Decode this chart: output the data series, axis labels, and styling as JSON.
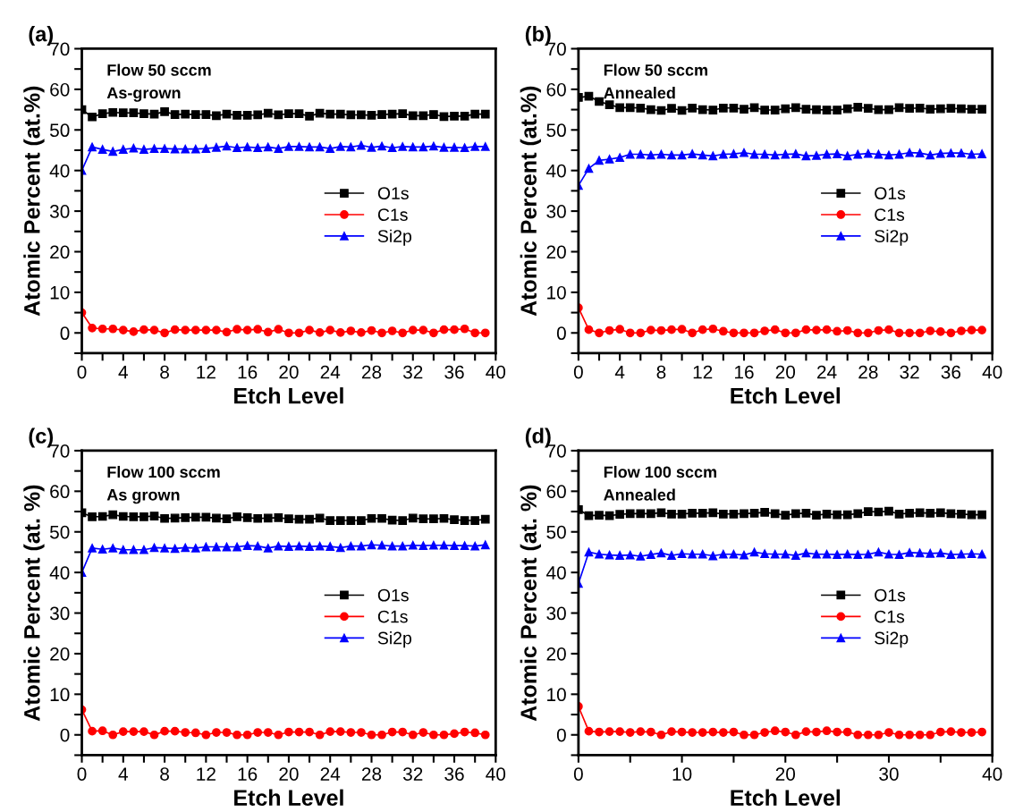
{
  "chart_data": [
    {
      "type": "line",
      "title": "(a)",
      "xlabel": "Etch Level",
      "ylabel": "Atomic Percent (at.%)",
      "annotations": [
        "Flow 50 sccm",
        "As-grown"
      ],
      "x": [
        0,
        1,
        2,
        3,
        4,
        5,
        6,
        7,
        8,
        9,
        10,
        11,
        12,
        13,
        14,
        15,
        16,
        17,
        18,
        19,
        20,
        21,
        22,
        23,
        24,
        25,
        26,
        27,
        28,
        29,
        30,
        31,
        32,
        33,
        34,
        35,
        36,
        37,
        38,
        39
      ],
      "xlim": [
        0,
        40
      ],
      "ylim": [
        -5,
        70
      ],
      "xticks": [
        0,
        {
          "value": 2,
          "label": null
        },
        4,
        {
          "value": 6,
          "label": null
        },
        8,
        {
          "value": 10,
          "label": null
        },
        12,
        {
          "value": 14,
          "label": null
        },
        16,
        {
          "value": 18,
          "label": null
        },
        20,
        {
          "value": 22,
          "label": null
        },
        24,
        {
          "value": 26,
          "label": null
        },
        28,
        {
          "value": 30,
          "label": null
        },
        32,
        {
          "value": 34,
          "label": null
        },
        36,
        {
          "value": 38,
          "label": null
        },
        40
      ],
      "yticks": [
        {
          "value": -5,
          "label": null
        },
        0,
        {
          "value": 5,
          "label": null
        },
        10,
        {
          "value": 15,
          "label": null
        },
        20,
        {
          "value": 25,
          "label": null
        },
        30,
        {
          "value": 35,
          "label": null
        },
        40,
        {
          "value": 45,
          "label": null
        },
        50,
        {
          "value": 55,
          "label": null
        },
        60,
        {
          "value": 65,
          "label": null
        },
        70
      ],
      "grid": false,
      "legend": "right",
      "line_style": "solid",
      "series": [
        {
          "name": "O1s",
          "color": "#000000",
          "marker": "square",
          "values": [
            55,
            53.2,
            54,
            54.3,
            54.2,
            54.2,
            54,
            53.9,
            54.5,
            53.8,
            53.9,
            53.8,
            53.8,
            53.5,
            53.9,
            53.6,
            53.6,
            53.7,
            54.1,
            53.7,
            54,
            54,
            53.4,
            54.1,
            53.9,
            53.9,
            53.7,
            53.7,
            53.6,
            53.8,
            53.9,
            54,
            53.5,
            53.5,
            53.8,
            53.3,
            53.4,
            53.4,
            53.9,
            53.9
          ]
        },
        {
          "name": "C1s",
          "color": "#ff0000",
          "marker": "circle",
          "values": [
            5,
            1.2,
            1,
            1,
            0.7,
            0.3,
            0.8,
            0.7,
            0,
            0.8,
            0.7,
            0.7,
            0.7,
            0.7,
            0.2,
            0.9,
            0.7,
            0.9,
            0.2,
            0.9,
            0,
            0,
            0.7,
            0.1,
            0.7,
            0.1,
            0.5,
            0.1,
            0.6,
            0,
            0.5,
            0,
            0.7,
            0.7,
            0,
            0.8,
            0.8,
            1,
            0,
            0
          ]
        },
        {
          "name": "Si2p",
          "color": "#0000ff",
          "marker": "triangle",
          "values": [
            40,
            45.8,
            45.2,
            44.7,
            45.2,
            45.5,
            45.2,
            45.4,
            45.4,
            45.3,
            45.3,
            45.3,
            45.4,
            45.7,
            46,
            45.6,
            45.8,
            45.6,
            45.8,
            45.4,
            45.9,
            45.9,
            45.8,
            45.8,
            45.4,
            45.9,
            45.8,
            46.2,
            45.7,
            46,
            45.6,
            45.9,
            45.8,
            45.8,
            46,
            45.7,
            45.7,
            45.6,
            45.9,
            45.9
          ]
        }
      ]
    },
    {
      "type": "line",
      "title": "(b)",
      "xlabel": "Etch Level",
      "ylabel": "Atomic Percent (at.%)",
      "annotations": [
        "Flow 50 sccm",
        "Annealed"
      ],
      "x": [
        0,
        1,
        2,
        3,
        4,
        5,
        6,
        7,
        8,
        9,
        10,
        11,
        12,
        13,
        14,
        15,
        16,
        17,
        18,
        19,
        20,
        21,
        22,
        23,
        24,
        25,
        26,
        27,
        28,
        29,
        30,
        31,
        32,
        33,
        34,
        35,
        36,
        37,
        38,
        39
      ],
      "xlim": [
        0,
        40
      ],
      "ylim": [
        -5,
        70
      ],
      "xticks": [
        0,
        {
          "value": 2,
          "label": null
        },
        4,
        {
          "value": 6,
          "label": null
        },
        8,
        {
          "value": 10,
          "label": null
        },
        12,
        {
          "value": 14,
          "label": null
        },
        16,
        {
          "value": 18,
          "label": null
        },
        20,
        {
          "value": 22,
          "label": null
        },
        24,
        {
          "value": 26,
          "label": null
        },
        28,
        {
          "value": 30,
          "label": null
        },
        32,
        {
          "value": 34,
          "label": null
        },
        36,
        {
          "value": 38,
          "label": null
        },
        40
      ],
      "yticks": [
        {
          "value": -5,
          "label": null
        },
        0,
        {
          "value": 5,
          "label": null
        },
        10,
        {
          "value": 15,
          "label": null
        },
        20,
        {
          "value": 25,
          "label": null
        },
        30,
        {
          "value": 35,
          "label": null
        },
        40,
        {
          "value": 45,
          "label": null
        },
        50,
        {
          "value": 55,
          "label": null
        },
        60,
        {
          "value": 65,
          "label": null
        },
        70
      ],
      "grid": false,
      "legend": "right",
      "line_style": "solid",
      "series": [
        {
          "name": "O1s",
          "color": "#000000",
          "marker": "square",
          "values": [
            58,
            58.3,
            57,
            56.2,
            55.5,
            55.5,
            55.4,
            55,
            54.8,
            55.3,
            54.8,
            55.4,
            55,
            54.9,
            55.4,
            55.4,
            55.1,
            55.5,
            54.9,
            54.9,
            55.2,
            55.5,
            55.1,
            55,
            54.9,
            54.9,
            55.2,
            55.6,
            55.3,
            55,
            55,
            55.5,
            55.3,
            55.4,
            55.1,
            55.2,
            55.3,
            55.2,
            55.1,
            55.1
          ]
        },
        {
          "name": "C1s",
          "color": "#ff0000",
          "marker": "circle",
          "values": [
            6.2,
            0.8,
            0,
            0.6,
            0.9,
            0,
            0,
            0.7,
            0.6,
            0.8,
            0.9,
            0,
            0.8,
            1,
            0.4,
            0,
            0,
            0,
            0.5,
            0.8,
            0,
            0,
            0.8,
            0.7,
            0.8,
            0.4,
            0.6,
            0,
            0,
            0.6,
            0.8,
            0,
            0,
            0,
            0.5,
            0.3,
            0,
            0.5,
            0.7,
            0.7
          ]
        },
        {
          "name": "Si2p",
          "color": "#0000ff",
          "marker": "triangle",
          "values": [
            36.3,
            40.5,
            42.5,
            42.8,
            43.2,
            44,
            44,
            43.8,
            44,
            43.8,
            43.8,
            44.1,
            43.8,
            43.6,
            44,
            44.1,
            44.4,
            44,
            44,
            43.8,
            44,
            44.1,
            43.6,
            43.7,
            44,
            44.1,
            43.6,
            44,
            44.2,
            44,
            43.8,
            44,
            44.4,
            44.3,
            43.8,
            44.2,
            44.3,
            44.3,
            44,
            44.1
          ]
        }
      ]
    },
    {
      "type": "line",
      "title": "(c)",
      "xlabel": "Etch Level",
      "ylabel": "Atomic Percent (at. %)",
      "annotations": [
        "Flow 100 sccm",
        "As grown"
      ],
      "x": [
        0,
        1,
        2,
        3,
        4,
        5,
        6,
        7,
        8,
        9,
        10,
        11,
        12,
        13,
        14,
        15,
        16,
        17,
        18,
        19,
        20,
        21,
        22,
        23,
        24,
        25,
        26,
        27,
        28,
        29,
        30,
        31,
        32,
        33,
        34,
        35,
        36,
        37,
        38,
        39
      ],
      "xlim": [
        0,
        40
      ],
      "ylim": [
        -5,
        70
      ],
      "xticks": [
        0,
        {
          "value": 2,
          "label": null
        },
        4,
        {
          "value": 6,
          "label": null
        },
        8,
        {
          "value": 10,
          "label": null
        },
        12,
        {
          "value": 14,
          "label": null
        },
        16,
        {
          "value": 18,
          "label": null
        },
        20,
        {
          "value": 22,
          "label": null
        },
        24,
        {
          "value": 26,
          "label": null
        },
        28,
        {
          "value": 30,
          "label": null
        },
        32,
        {
          "value": 34,
          "label": null
        },
        36,
        {
          "value": 38,
          "label": null
        },
        40
      ],
      "yticks": [
        {
          "value": -5,
          "label": null
        },
        0,
        {
          "value": 5,
          "label": null
        },
        10,
        {
          "value": 15,
          "label": null
        },
        20,
        {
          "value": 25,
          "label": null
        },
        30,
        {
          "value": 35,
          "label": null
        },
        40,
        {
          "value": 45,
          "label": null
        },
        50,
        {
          "value": 55,
          "label": null
        },
        60,
        {
          "value": 65,
          "label": null
        },
        70
      ],
      "grid": false,
      "legend": "right",
      "line_style": "solid",
      "series": [
        {
          "name": "O1s",
          "color": "#000000",
          "marker": "square",
          "values": [
            54.7,
            53.7,
            53.8,
            54.2,
            53.8,
            53.7,
            53.7,
            53.9,
            53.3,
            53.4,
            53.5,
            53.6,
            53.6,
            53.4,
            53.2,
            53.7,
            53.5,
            53.3,
            53.4,
            53.5,
            53.2,
            53.1,
            53.1,
            53.4,
            52.8,
            52.8,
            52.8,
            52.8,
            53.3,
            53.3,
            52.9,
            52.8,
            53.4,
            53.2,
            53.2,
            53.3,
            53,
            52.8,
            52.8,
            53.1
          ]
        },
        {
          "name": "C1s",
          "color": "#ff0000",
          "marker": "circle",
          "values": [
            6.2,
            0.9,
            1,
            0,
            0.8,
            0.8,
            0.8,
            0,
            0.9,
            0.9,
            0.6,
            0.5,
            0,
            0.6,
            0.6,
            0,
            0,
            0.6,
            0.6,
            0,
            0.7,
            0.7,
            0.7,
            0,
            0.8,
            0.8,
            0.6,
            0.6,
            0,
            0,
            0.7,
            0.7,
            0,
            0.6,
            0,
            0,
            0.3,
            0.7,
            0.5,
            0
          ]
        },
        {
          "name": "Si2p",
          "color": "#0000ff",
          "marker": "triangle",
          "values": [
            40,
            46,
            45.7,
            46,
            45.6,
            45.6,
            45.6,
            46.1,
            46,
            45.9,
            46.1,
            46,
            46.3,
            46.3,
            46.3,
            46.3,
            46.6,
            46.5,
            46,
            46.5,
            46.4,
            46.5,
            46.4,
            46.5,
            46.4,
            46.1,
            46.5,
            46.5,
            46.8,
            46.7,
            46.5,
            46.5,
            46.7,
            46.6,
            46.7,
            46.7,
            46.6,
            46.6,
            46.5,
            46.8
          ]
        }
      ]
    },
    {
      "type": "line",
      "title": "(d)",
      "xlabel": "Etch Level",
      "ylabel": "Atomic Percent (at. %)",
      "annotations": [
        "Flow 100 sccm",
        "Annealed"
      ],
      "x": [
        0,
        1,
        2,
        3,
        4,
        5,
        6,
        7,
        8,
        9,
        10,
        11,
        12,
        13,
        14,
        15,
        16,
        17,
        18,
        19,
        20,
        21,
        22,
        23,
        24,
        25,
        26,
        27,
        28,
        29,
        30,
        31,
        32,
        33,
        34,
        35,
        36,
        37,
        38,
        39
      ],
      "xlim": [
        0,
        40
      ],
      "ylim": [
        -5,
        70
      ],
      "xticks": [
        0,
        {
          "value": 5,
          "label": null
        },
        10,
        {
          "value": 15,
          "label": null
        },
        20,
        {
          "value": 25,
          "label": null
        },
        30,
        {
          "value": 35,
          "label": null
        },
        40
      ],
      "yticks": [
        {
          "value": -5,
          "label": null
        },
        0,
        {
          "value": 5,
          "label": null
        },
        10,
        {
          "value": 15,
          "label": null
        },
        20,
        {
          "value": 25,
          "label": null
        },
        30,
        {
          "value": 35,
          "label": null
        },
        40,
        {
          "value": 45,
          "label": null
        },
        50,
        {
          "value": 55,
          "label": null
        },
        60,
        {
          "value": 65,
          "label": null
        },
        70
      ],
      "grid": false,
      "legend": "right",
      "line_style": "solid",
      "series": [
        {
          "name": "O1s",
          "color": "#000000",
          "marker": "square",
          "values": [
            55.5,
            54,
            54.1,
            54,
            54.3,
            54.5,
            54.5,
            54.5,
            54.7,
            54.4,
            54.4,
            54.6,
            54.6,
            54.7,
            54.4,
            54.4,
            54.5,
            54.6,
            54.8,
            54.5,
            54.1,
            54.5,
            54.6,
            54.1,
            54.4,
            54.2,
            54.2,
            54.5,
            55,
            54.9,
            55.1,
            54.4,
            54.6,
            54.7,
            54.6,
            54.7,
            54.5,
            54.4,
            54.2,
            54.2
          ]
        },
        {
          "name": "C1s",
          "color": "#ff0000",
          "marker": "circle",
          "values": [
            7,
            0.9,
            0.7,
            0.8,
            0.8,
            0.6,
            0.8,
            0.7,
            0,
            0.8,
            0.7,
            0.6,
            0.6,
            0.7,
            0.6,
            0.7,
            0,
            0,
            0.6,
            1,
            0.7,
            0,
            0.8,
            0.7,
            1,
            0.7,
            0.7,
            0,
            0,
            0,
            0.6,
            0,
            0,
            0,
            0,
            0.7,
            0.8,
            0.6,
            0.6,
            0.7
          ]
        },
        {
          "name": "Si2p",
          "color": "#0000ff",
          "marker": "triangle",
          "values": [
            37.3,
            45,
            44.5,
            44.3,
            44.2,
            44.3,
            44,
            44.4,
            44.8,
            44.2,
            44.6,
            44.5,
            44.5,
            44.1,
            44.5,
            44.5,
            44.3,
            45,
            44.6,
            44.5,
            44.5,
            44.2,
            44.8,
            44.5,
            44.5,
            44.4,
            44.5,
            44.4,
            44.5,
            45,
            44.5,
            44.4,
            44.9,
            44.8,
            44.7,
            44.8,
            44.4,
            44.5,
            44.6,
            44.5
          ]
        }
      ]
    }
  ]
}
